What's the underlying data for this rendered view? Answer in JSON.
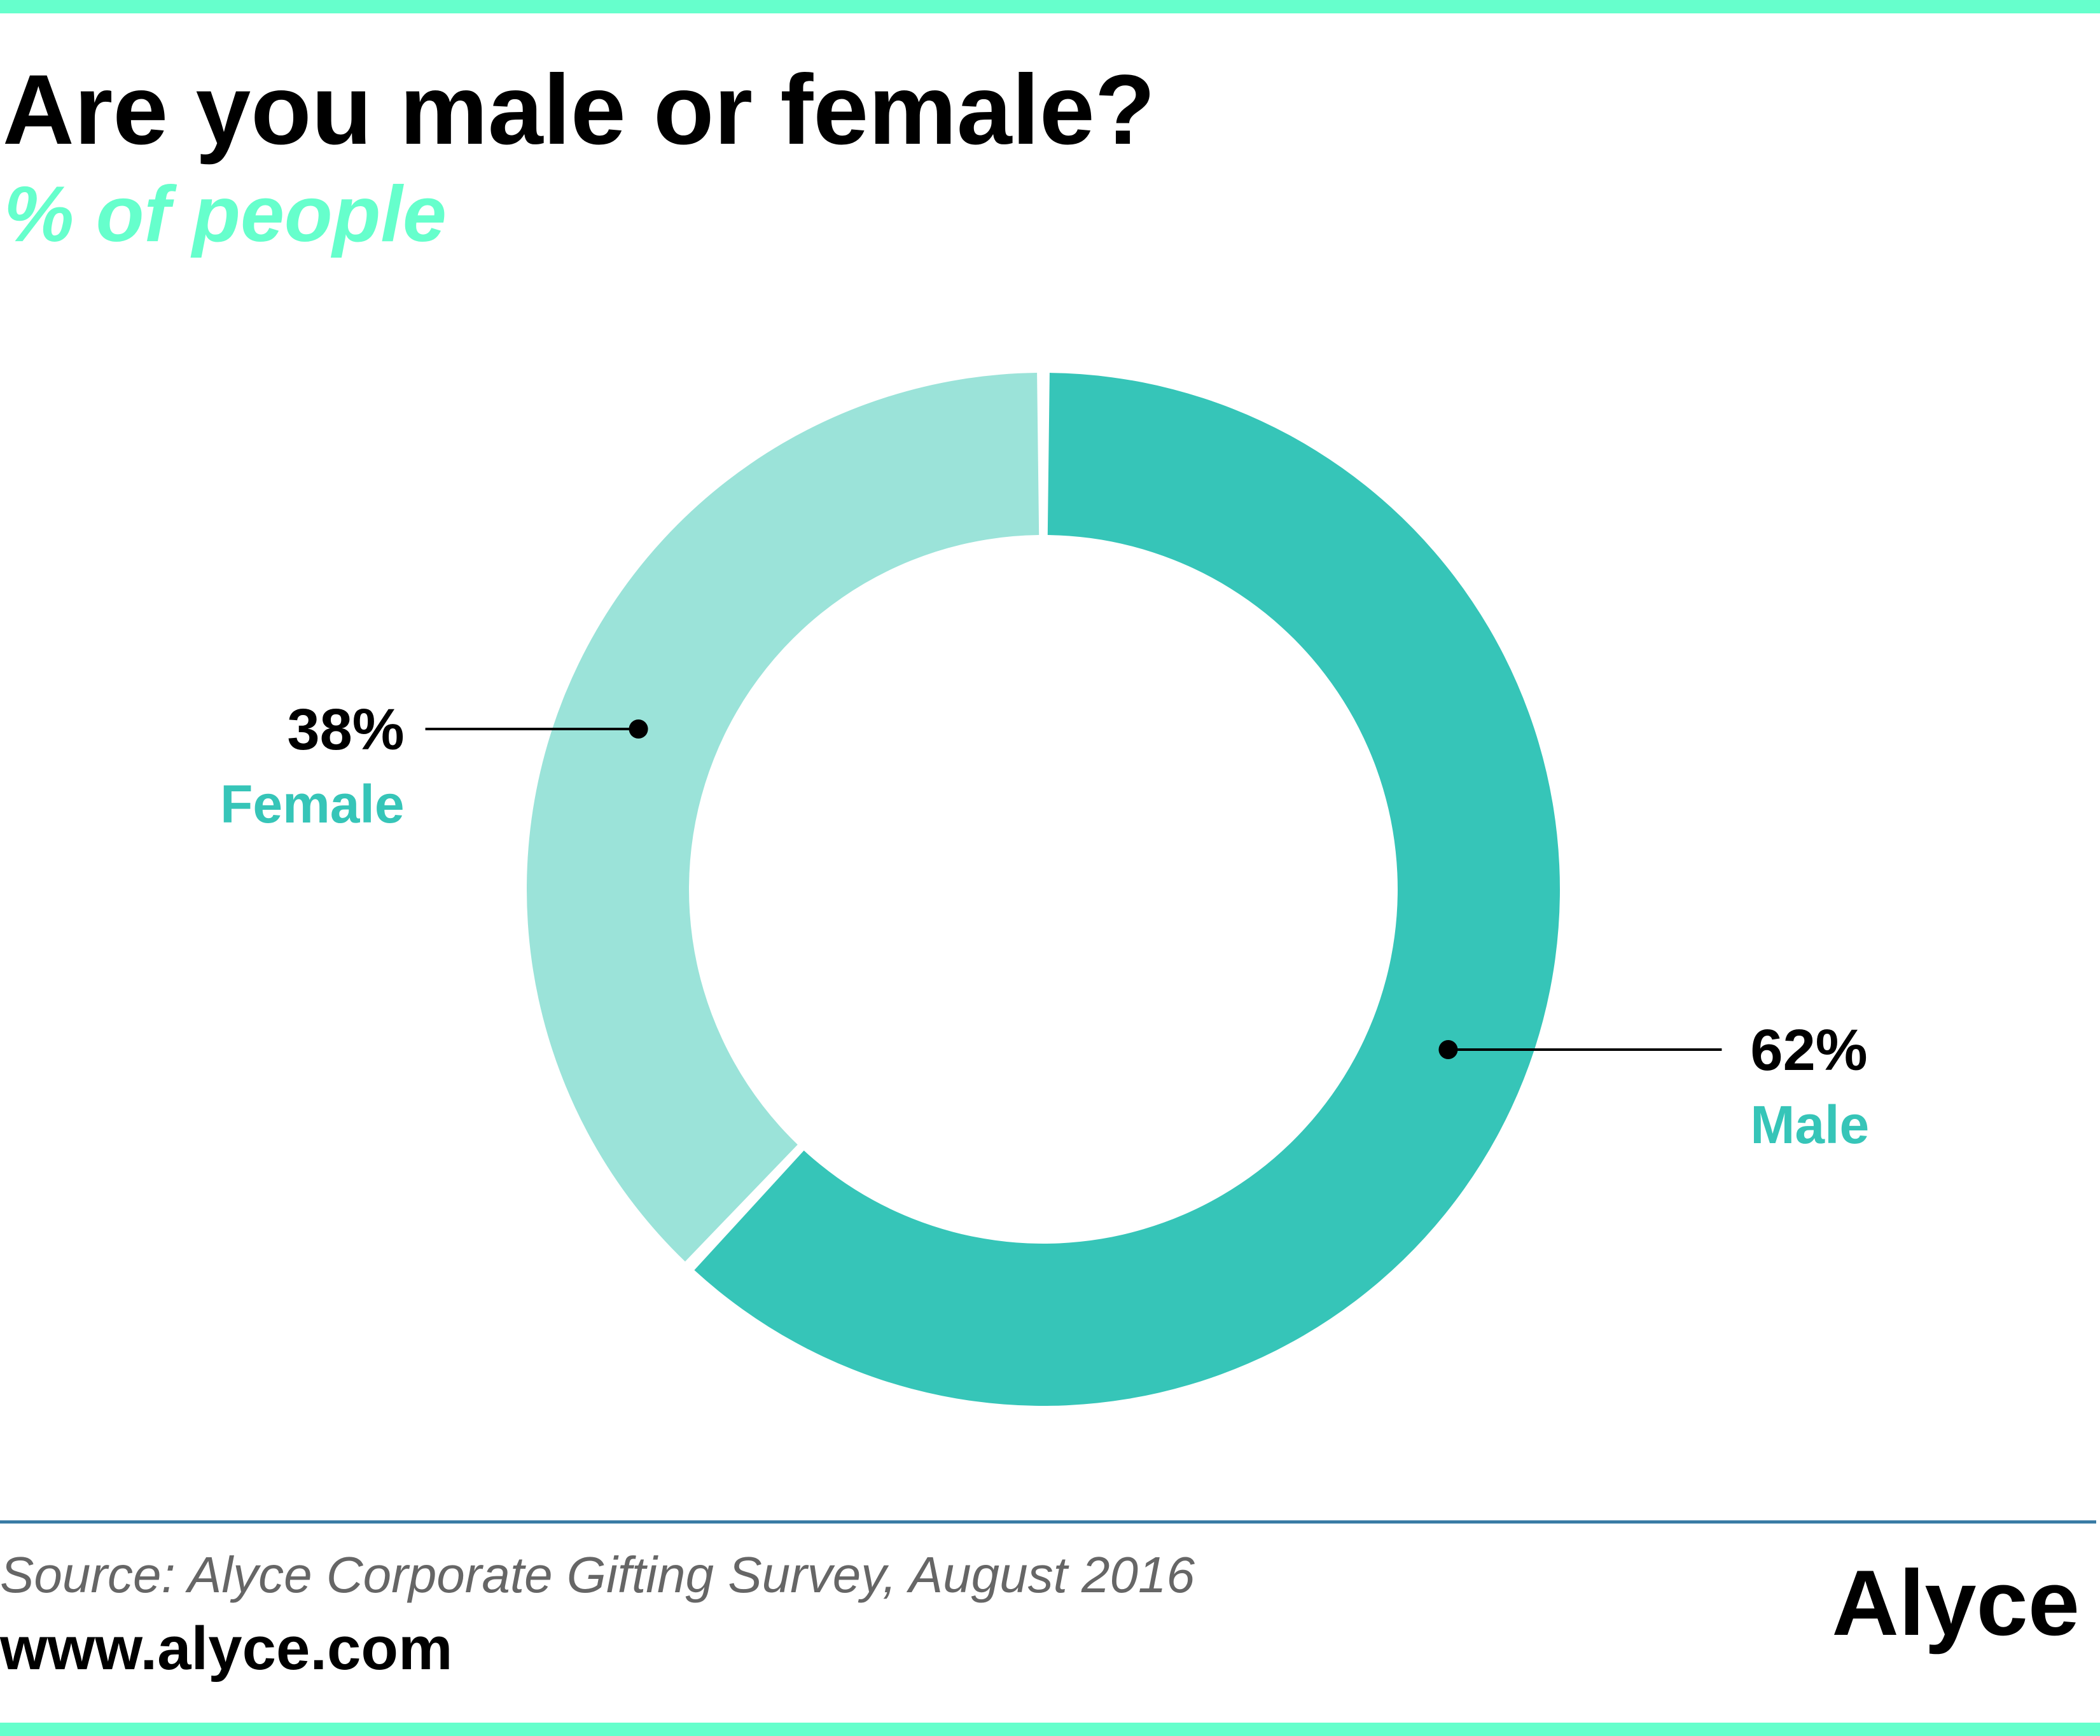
{
  "header": {
    "title": "Are you male or female?",
    "subtitle": "% of people"
  },
  "chart_data": {
    "type": "pie",
    "style": "donut",
    "title": "Are you male or female?",
    "subtitle": "% of people",
    "unit": "%",
    "slices": [
      {
        "label": "Male",
        "value": 62,
        "value_label": "62%",
        "color": "#36C5B8"
      },
      {
        "label": "Female",
        "value": 38,
        "value_label": "38%",
        "color": "#9BE3D9"
      }
    ],
    "start": "top",
    "direction": "clockwise"
  },
  "footer": {
    "source": "Source: Alyce Corporate Gifting Survey, August 2016",
    "website": "www.alyce.com",
    "brand": "Alyce"
  },
  "colors": {
    "accent_bar": "#66FFCC",
    "subtitle": "#66FFCC",
    "label_text": "#36C5B8",
    "value_text": "#000000",
    "divider": "#3A7CA5",
    "source_text": "#666666"
  }
}
